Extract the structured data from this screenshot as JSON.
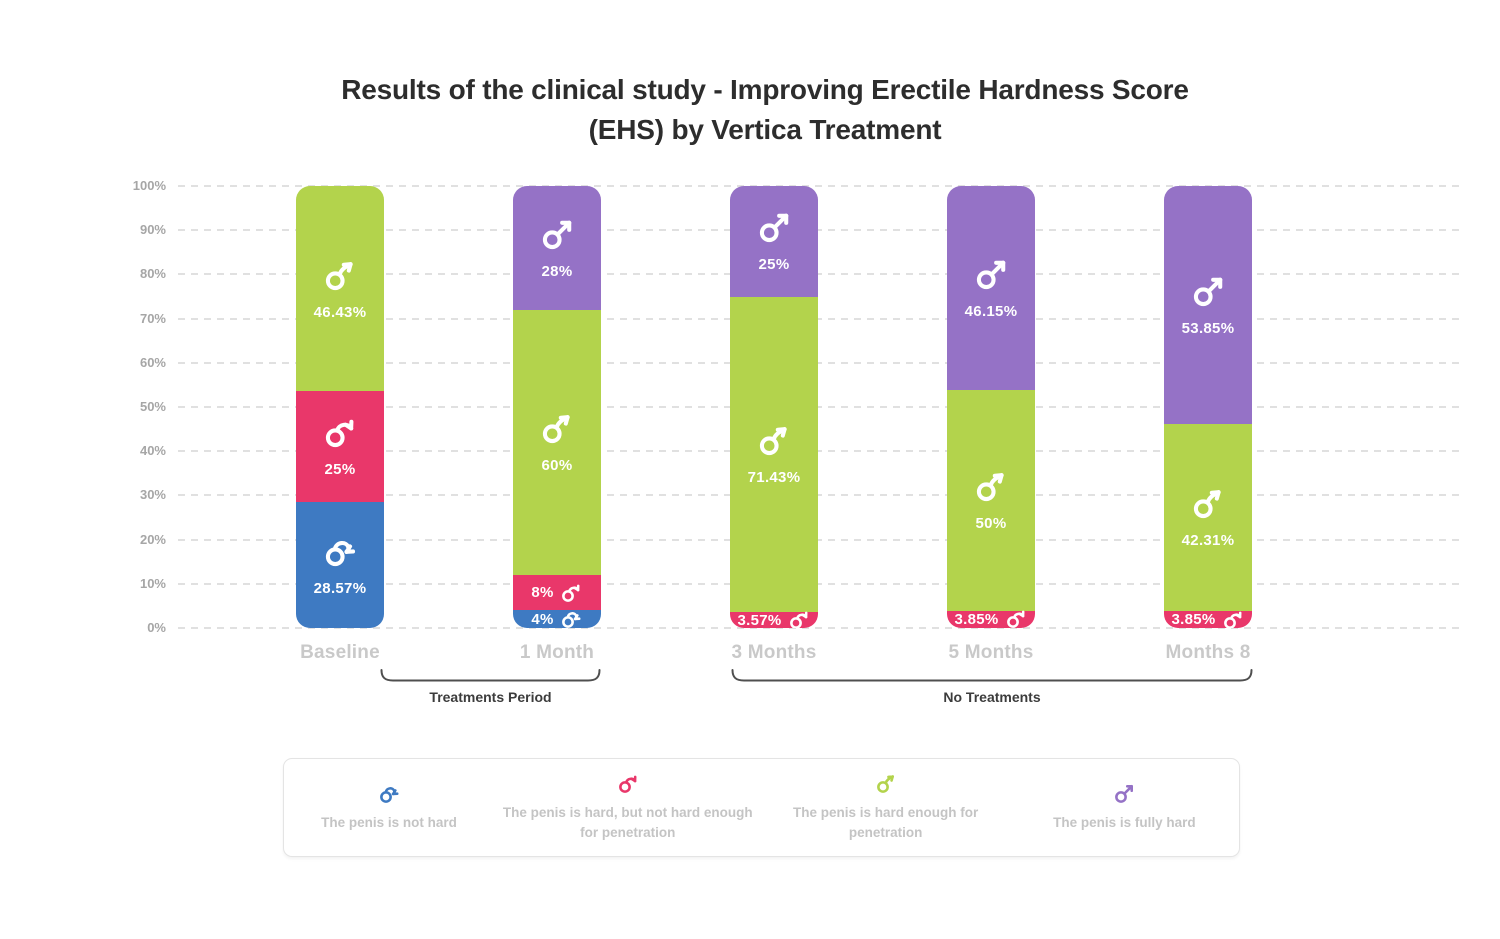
{
  "title": {
    "line1": "Results of the clinical study - Improving Erectile Hardness Score",
    "line2": "(EHS) by Vertica Treatment"
  },
  "chart_data": {
    "type": "bar",
    "stacked": true,
    "unit": "%",
    "title": "Results of the clinical study - Improving Erectile Hardness Score (EHS) by Vertica Treatment",
    "categories": [
      "Baseline",
      "1 Month",
      "3 Months",
      "5 Months",
      "Months 8"
    ],
    "series": [
      {
        "key": "not_hard",
        "label": "The penis is not hard",
        "icon": "penis-not-hard-icon",
        "color": "#3e7ac2",
        "values": [
          28.57,
          4,
          0,
          0,
          0
        ]
      },
      {
        "key": "hard_not_enough",
        "label": "The penis is hard, but not hard enough for penetration",
        "icon": "penis-hard-not-enough-icon",
        "color": "#e9376a",
        "values": [
          25,
          8,
          3.57,
          3.85,
          3.85
        ]
      },
      {
        "key": "hard_enough",
        "label": "The penis is hard enough for penetration",
        "icon": "penis-hard-enough-icon",
        "color": "#b3d34c",
        "values": [
          46.43,
          60,
          71.43,
          50,
          42.31
        ]
      },
      {
        "key": "fully_hard",
        "label": "The penis is fully hard",
        "icon": "penis-fully-hard-icon",
        "color": "#9572c6",
        "values": [
          0,
          28,
          25,
          46.15,
          53.85
        ]
      }
    ],
    "y_ticks": [
      "0%",
      "10%",
      "20%",
      "30%",
      "40%",
      "50%",
      "60%",
      "70%",
      "80%",
      "90%",
      "100%"
    ],
    "ylim": [
      0,
      100
    ],
    "grid": "horizontal-dashed",
    "legend_position": "bottom"
  },
  "periods": [
    {
      "label": "Treatments Period"
    },
    {
      "label": "No Treatments"
    }
  ]
}
